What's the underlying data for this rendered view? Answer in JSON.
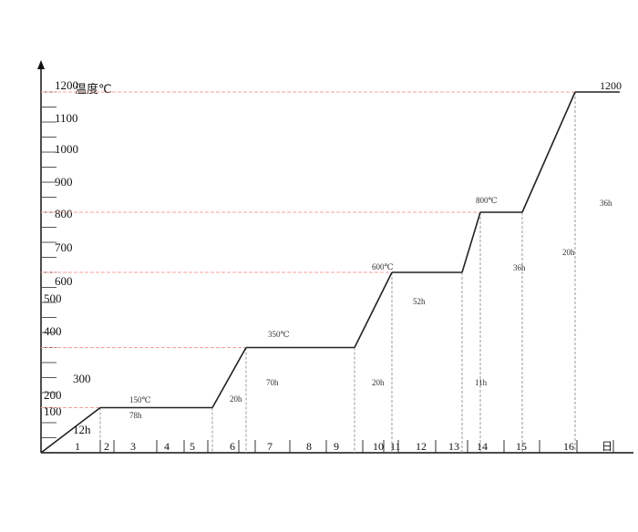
{
  "chart_data": {
    "type": "line",
    "title": "",
    "ylabel": "温度℃",
    "xlabel": "日",
    "ylim": [
      0,
      1200
    ],
    "y_ticks": [
      "1200",
      "1100",
      "1000",
      "900",
      "800",
      "700",
      "600",
      "500",
      "400",
      "300",
      "200",
      "100"
    ],
    "day_labels": [
      "1",
      "2",
      "3",
      "4",
      "5",
      "6",
      "7",
      "8",
      "9",
      "10",
      "11",
      "12",
      "13",
      "14",
      "15",
      "16"
    ],
    "grid": false,
    "reference_line_color": "#f4a0a0",
    "line_color": "#222222",
    "profile": [
      {
        "phase": "ramp",
        "hours": 12,
        "from": 0,
        "to": 150,
        "label": "12h"
      },
      {
        "phase": "hold",
        "hours": 78,
        "temp": 150,
        "label": "78h",
        "temp_label": "150℃"
      },
      {
        "phase": "ramp",
        "hours": 20,
        "from": 150,
        "to": 350,
        "label": "20h"
      },
      {
        "phase": "hold",
        "hours": 70,
        "temp": 350,
        "label": "70h",
        "temp_label": "350℃"
      },
      {
        "phase": "ramp",
        "hours": 20,
        "from": 350,
        "to": 600,
        "label": "20h"
      },
      {
        "phase": "hold",
        "hours": 52,
        "temp": 600,
        "label": "52h",
        "temp_label": "600℃"
      },
      {
        "phase": "ramp",
        "hours": 11,
        "from": 600,
        "to": 800,
        "label": "11h"
      },
      {
        "phase": "hold",
        "hours": 36,
        "temp": 800,
        "label": "36h",
        "temp_label": "800℃"
      },
      {
        "phase": "ramp",
        "hours": 20,
        "from": 800,
        "to": 1200,
        "label": "20h"
      },
      {
        "phase": "hold",
        "hours": 36,
        "temp": 1200,
        "label": "36h",
        "temp_label": "1200"
      }
    ]
  }
}
